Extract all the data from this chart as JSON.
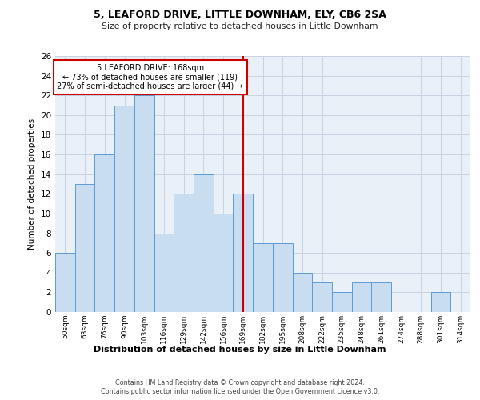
{
  "title1": "5, LEAFORD DRIVE, LITTLE DOWNHAM, ELY, CB6 2SA",
  "title2": "Size of property relative to detached houses in Little Downham",
  "xlabel": "Distribution of detached houses by size in Little Downham",
  "ylabel": "Number of detached properties",
  "categories": [
    "50sqm",
    "63sqm",
    "76sqm",
    "90sqm",
    "103sqm",
    "116sqm",
    "129sqm",
    "142sqm",
    "156sqm",
    "169sqm",
    "182sqm",
    "195sqm",
    "208sqm",
    "222sqm",
    "235sqm",
    "248sqm",
    "261sqm",
    "274sqm",
    "288sqm",
    "301sqm",
    "314sqm"
  ],
  "values": [
    6,
    13,
    16,
    21,
    22,
    8,
    12,
    14,
    10,
    12,
    7,
    7,
    4,
    3,
    2,
    3,
    3,
    0,
    0,
    2,
    0
  ],
  "bar_color": "#c9ddf0",
  "bar_edge_color": "#5b9bd5",
  "vline_index": 9,
  "vline_color": "#cc0000",
  "annotation_text": "5 LEAFORD DRIVE: 168sqm\n← 73% of detached houses are smaller (119)\n27% of semi-detached houses are larger (44) →",
  "annotation_box_color": "#ffffff",
  "annotation_box_edge_color": "#cc0000",
  "ylim": [
    0,
    26
  ],
  "yticks": [
    0,
    2,
    4,
    6,
    8,
    10,
    12,
    14,
    16,
    18,
    20,
    22,
    24,
    26
  ],
  "grid_color": "#c8d4e3",
  "bg_color": "#eaf0f8",
  "footer1": "Contains HM Land Registry data © Crown copyright and database right 2024.",
  "footer2": "Contains public sector information licensed under the Open Government Licence v3.0."
}
